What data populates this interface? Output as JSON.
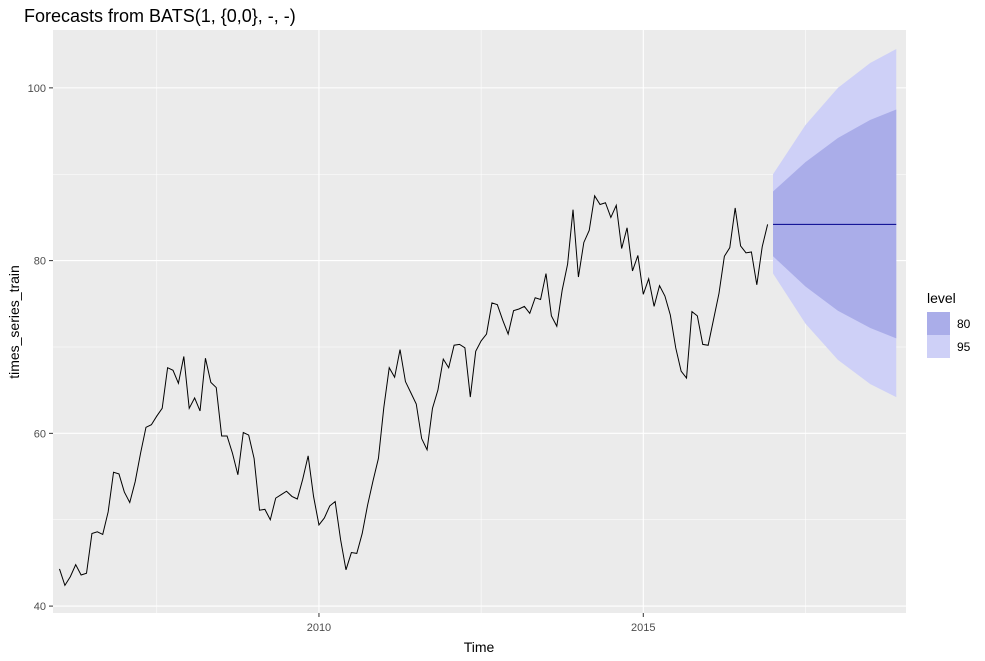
{
  "chart_data": {
    "type": "line",
    "title": "Forecasts from BATS(1, {0,0}, -, -)",
    "xlabel": "Time",
    "ylabel": "times_series_train",
    "xlim": [
      2005.9,
      2019.05
    ],
    "ylim": [
      39.2,
      106.7
    ],
    "x_ticks": [
      2010,
      2015
    ],
    "x_tick_labels": [
      "2010",
      "2015"
    ],
    "y_ticks": [
      40,
      60,
      80,
      100
    ],
    "y_tick_labels": [
      "40",
      "60",
      "80",
      "100"
    ],
    "grid": true,
    "legend": {
      "title": "level",
      "position": "right",
      "entries": [
        {
          "label": "80",
          "color": "#aaade9"
        },
        {
          "label": "95",
          "color": "#ced0f7"
        }
      ]
    },
    "colors": {
      "panel_background": "#ebebeb",
      "grid_major": "#ffffff",
      "history_line": "#000000",
      "forecast_line": "#00008b",
      "band_80": "#aaade9",
      "band_95": "#ced0f7"
    },
    "series": [
      {
        "name": "",
        "kind": "history",
        "start": 2006.0,
        "frequency": 12,
        "values": [
          44.3,
          42.4,
          43.4,
          44.8,
          43.6,
          43.8,
          48.4,
          48.6,
          48.3,
          50.9,
          55.5,
          55.3,
          53.2,
          52.0,
          54.4,
          57.7,
          60.7,
          61.0,
          62.0,
          62.9,
          67.6,
          67.3,
          65.8,
          68.9,
          62.9,
          64.1,
          62.6,
          68.7,
          65.9,
          65.3,
          59.7,
          59.7,
          57.7,
          55.2,
          60.1,
          59.8,
          57.1,
          51.1,
          51.2,
          50.0,
          52.5,
          52.9,
          53.3,
          52.7,
          52.4,
          54.7,
          57.4,
          52.7,
          49.4,
          50.2,
          51.6,
          52.1,
          47.7,
          44.2,
          46.2,
          46.1,
          48.4,
          51.7,
          54.5,
          57.1,
          63.0,
          67.6,
          66.5,
          69.7,
          66.0,
          64.7,
          63.4,
          59.4,
          58.1,
          62.9,
          65.0,
          68.6,
          67.6,
          70.2,
          70.3,
          69.9,
          64.2,
          69.5,
          70.7,
          71.5,
          75.1,
          74.9,
          73.1,
          71.5,
          74.2,
          74.4,
          74.7,
          73.9,
          75.7,
          75.5,
          78.5,
          73.6,
          72.4,
          76.6,
          79.6,
          85.9,
          78.1,
          82.1,
          83.5,
          87.5,
          86.5,
          86.7,
          85.0,
          86.4,
          81.4,
          83.8,
          78.8,
          80.6,
          76.1,
          77.9,
          74.7,
          77.1,
          75.9,
          73.7,
          69.9,
          67.2,
          66.4,
          74.1,
          73.6,
          70.3,
          70.2,
          73.2,
          76.2,
          80.5,
          81.5,
          86.1,
          81.7,
          80.9,
          81.0,
          77.2,
          81.6,
          84.2
        ]
      },
      {
        "name": "",
        "kind": "forecast",
        "start": 2017.0,
        "end": 2018.9,
        "point": 84.2,
        "x": [
          2017.0,
          2017.5,
          2018.0,
          2018.5,
          2018.9
        ],
        "lo80": [
          80.5,
          77.0,
          74.2,
          72.2,
          71.0
        ],
        "hi80": [
          88.0,
          91.4,
          94.2,
          96.3,
          97.5
        ],
        "lo95": [
          78.5,
          72.7,
          68.5,
          65.7,
          64.2
        ],
        "hi95": [
          90.0,
          95.7,
          100.0,
          102.9,
          104.5
        ]
      }
    ]
  }
}
